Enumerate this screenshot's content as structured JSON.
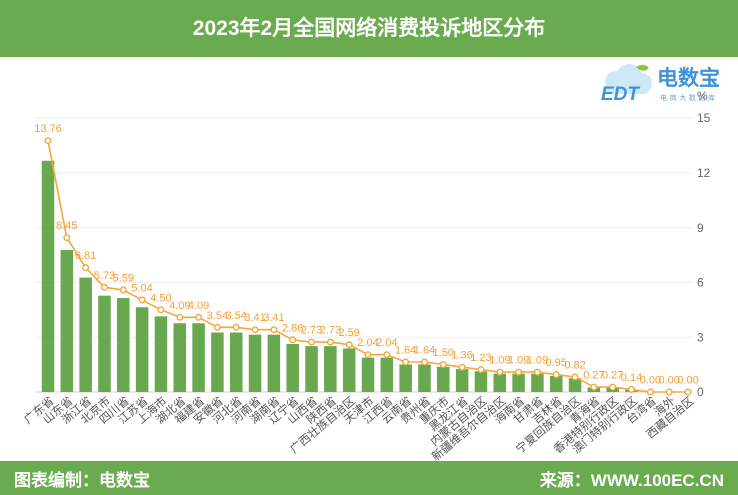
{
  "logo": {
    "mark": "EDT",
    "name": "电数宝",
    "tagline": "电商大数据库"
  },
  "footer": {
    "credit": "图表编制：电数宝",
    "source": "来源：WWW.100EC.CN"
  },
  "colors": {
    "brand_green": "#6aab50",
    "bar": "#68a84e",
    "line": "#f6a73b",
    "value_label": "#f3a035",
    "logo_blue": "#3d92da",
    "logo_cloud": "#cfe8f8",
    "logo_leaf": "#8dc63f"
  },
  "chart_data": {
    "type": "bar",
    "overlay": "line",
    "title": "2023年2月全国网络消费投诉地区分布",
    "ylabel": "%",
    "ylim": [
      0,
      15
    ],
    "yticks": [
      0,
      3,
      6,
      9,
      12,
      15
    ],
    "y_axis_side": "right",
    "grid": true,
    "data_labels": true,
    "categories": [
      "广东省",
      "山东省",
      "浙江省",
      "北京市",
      "四川省",
      "江苏省",
      "上海市",
      "湖北省",
      "福建省",
      "安徽省",
      "河北省",
      "河南省",
      "湖南省",
      "辽宁省",
      "山西省",
      "陕西省",
      "广西壮族自治区",
      "天津市",
      "江西省",
      "云南省",
      "贵州省",
      "重庆市",
      "黑龙江省",
      "内蒙古自治区",
      "新疆维吾尔自治区",
      "海南省",
      "甘肃省",
      "吉林省",
      "宁夏回族自治区",
      "青海省",
      "香港特别行政区",
      "澳门特别行政区",
      "台湾省",
      "海外",
      "西藏自治区"
    ],
    "values": [
      13.76,
      8.45,
      6.81,
      5.73,
      5.59,
      5.04,
      4.5,
      4.09,
      4.09,
      3.54,
      3.54,
      3.41,
      3.41,
      2.86,
      2.73,
      2.73,
      2.59,
      2.04,
      2.04,
      1.64,
      1.64,
      1.5,
      1.36,
      1.23,
      1.09,
      1.09,
      1.09,
      0.95,
      0.82,
      0.27,
      0.27,
      0.14,
      0.0,
      0.0,
      0.0
    ]
  }
}
